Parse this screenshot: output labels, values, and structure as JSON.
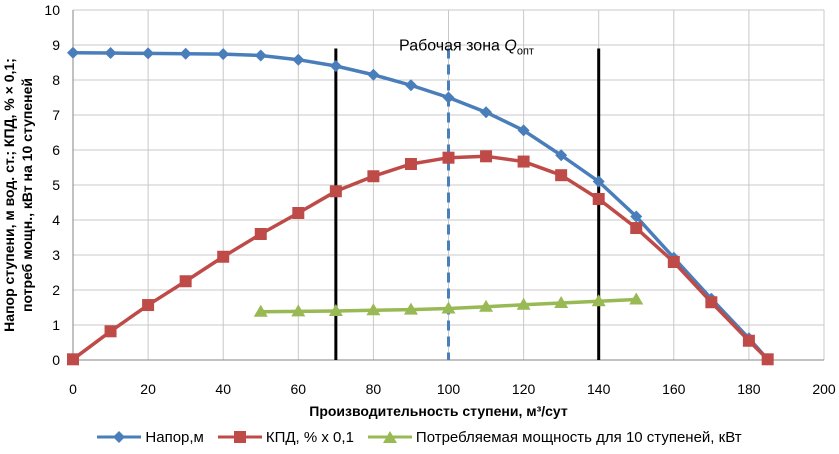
{
  "chart_data": {
    "type": "line",
    "xlabel": "Производительность ступени, м³/сут",
    "ylabel_lines": [
      "Напор ступени, м вод. ст.; КПД, % × 0,1;",
      "потреб  мощн., кВт на 10 ступеней"
    ],
    "xlim": [
      0,
      200
    ],
    "ylim": [
      0,
      10
    ],
    "xticks": [
      0,
      20,
      40,
      60,
      80,
      100,
      120,
      140,
      160,
      180,
      200
    ],
    "yticks": [
      0,
      1,
      2,
      3,
      4,
      5,
      6,
      7,
      8,
      9,
      10
    ],
    "grid": true,
    "legend_position": "bottom",
    "series": [
      {
        "name": "Напор,м",
        "color": "#4a7ebb",
        "marker": "diamond",
        "x": [
          0,
          10,
          20,
          30,
          40,
          50,
          60,
          70,
          80,
          90,
          100,
          110,
          120,
          130,
          140,
          150,
          160,
          170,
          180,
          185
        ],
        "y": [
          8.78,
          8.77,
          8.76,
          8.75,
          8.74,
          8.7,
          8.58,
          8.4,
          8.15,
          7.85,
          7.5,
          7.08,
          6.56,
          5.85,
          5.1,
          4.1,
          2.92,
          1.75,
          0.62,
          0.02
        ]
      },
      {
        "name": "КПД, % x 0,1",
        "color": "#be4b48",
        "marker": "square",
        "x": [
          0,
          10,
          20,
          30,
          40,
          50,
          60,
          70,
          80,
          90,
          100,
          110,
          120,
          130,
          140,
          150,
          160,
          170,
          180,
          185
        ],
        "y": [
          0.02,
          0.82,
          1.57,
          2.25,
          2.95,
          3.6,
          4.2,
          4.82,
          5.25,
          5.6,
          5.78,
          5.82,
          5.67,
          5.28,
          4.6,
          3.77,
          2.8,
          1.65,
          0.55,
          0.02
        ]
      },
      {
        "name": "Потребляемая мощность для 10 ступеней, кВт",
        "color": "#98b954",
        "marker": "triangle",
        "x": [
          50,
          60,
          70,
          80,
          90,
          100,
          110,
          120,
          130,
          140,
          150
        ],
        "y": [
          1.38,
          1.39,
          1.4,
          1.42,
          1.44,
          1.47,
          1.52,
          1.58,
          1.63,
          1.68,
          1.73
        ]
      }
    ],
    "vertical_lines": [
      {
        "x": 70,
        "style": "solid",
        "color": "#000000"
      },
      {
        "x": 100,
        "style": "dashed",
        "color": "#4a7ebb"
      },
      {
        "x": 140,
        "style": "solid",
        "color": "#000000"
      }
    ],
    "annotation": {
      "text": "Рабочая зона ",
      "symbol": "Q",
      "subscript": "опт",
      "x": 100,
      "y": 8.9
    }
  }
}
